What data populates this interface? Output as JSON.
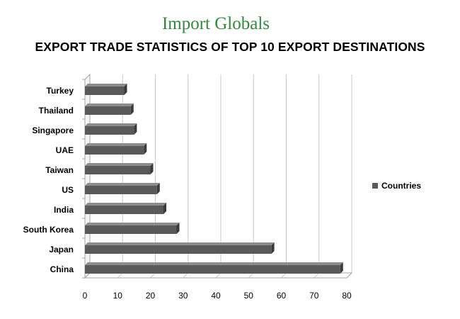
{
  "logo": {
    "text": "Import Globals"
  },
  "chart_data": {
    "type": "bar",
    "orientation": "horizontal",
    "title": "EXPORT TRADE STATISTICS OF TOP 10 EXPORT DESTINATIONS",
    "categories": [
      "China",
      "Japan",
      "South Korea",
      "India",
      "US",
      "Taiwan",
      "UAE",
      "Singapore",
      "Thailand",
      "Turkey"
    ],
    "series": [
      {
        "name": "Countries",
        "values": [
          78,
          57,
          28,
          24,
          22,
          20,
          18,
          15,
          14,
          12
        ]
      }
    ],
    "xlim": [
      0,
      80
    ],
    "xticks": [
      0,
      10,
      20,
      30,
      40,
      50,
      60,
      70,
      80
    ],
    "grid": true,
    "legend": "right",
    "colors": {
      "bar": "#595959",
      "bar_top": "#8c8c8c",
      "bar_side": "#3a3a3a",
      "grid": "#c8c8c8"
    }
  }
}
